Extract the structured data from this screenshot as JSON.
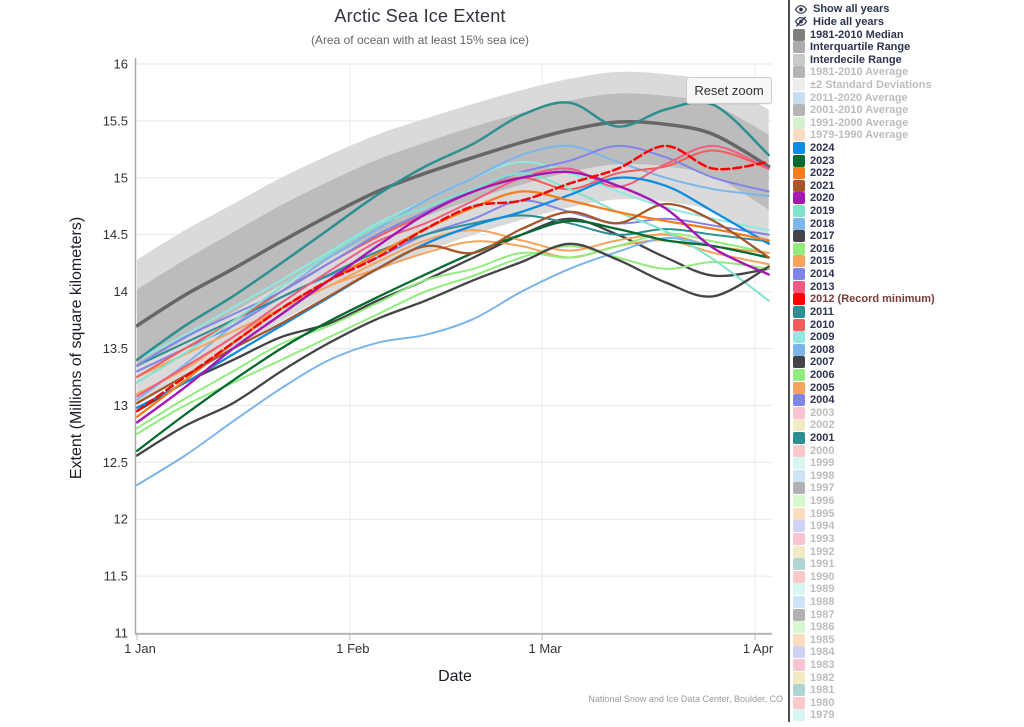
{
  "chart": {
    "title": "Arctic Sea Ice Extent",
    "subtitle": "(Area of ocean with at least 15% sea ice)",
    "y_axis_label": "Extent (Millions of square kilometers)",
    "x_axis_label": "Date",
    "reset_zoom_label": "Reset zoom",
    "attribution": "National Snow and Ice Data Center, Boulder, CO",
    "menu_icon": "hamburger"
  },
  "chart_data": {
    "type": "line",
    "title": "Arctic Sea Ice Extent",
    "subtitle": "(Area of ocean with at least 15% sea ice)",
    "xlabel": "Date",
    "ylabel": "Extent (Millions of square kilometers)",
    "ylim": [
      11,
      16
    ],
    "grid": true,
    "legend_position": "right",
    "y_ticks": [
      11,
      11.5,
      12,
      12.5,
      13,
      13.5,
      14,
      14.5,
      15,
      15.5,
      16
    ],
    "x_tick_labels": [
      "1 Jan",
      "1 Feb",
      "1 Mar",
      "1 Apr"
    ],
    "x_tick_days": [
      0,
      31,
      59,
      90
    ],
    "x_days": [
      0,
      7,
      14,
      21,
      28,
      35,
      42,
      49,
      56,
      63,
      70,
      77,
      84,
      92
    ],
    "bands": [
      {
        "name": "Interdecile Range",
        "color": "#dadada",
        "upper": [
          14.28,
          14.54,
          14.77,
          15.0,
          15.2,
          15.38,
          15.52,
          15.65,
          15.77,
          15.87,
          15.93,
          15.91,
          15.84,
          15.6
        ],
        "lower": [
          13.0,
          13.26,
          13.5,
          13.74,
          13.97,
          14.18,
          14.35,
          14.5,
          14.63,
          14.74,
          14.81,
          14.79,
          14.7,
          14.42
        ]
      },
      {
        "name": "Interquartile Range",
        "color": "#bcbcbc",
        "upper": [
          14.02,
          14.28,
          14.52,
          14.76,
          14.97,
          15.16,
          15.31,
          15.45,
          15.57,
          15.68,
          15.74,
          15.72,
          15.64,
          15.38
        ],
        "lower": [
          13.33,
          13.58,
          13.82,
          14.06,
          14.29,
          14.5,
          14.66,
          14.81,
          14.94,
          15.05,
          15.12,
          15.1,
          15.01,
          14.72
        ]
      }
    ],
    "median": {
      "name": "1981-2010 Median",
      "color": "#666666",
      "width": 3.5,
      "values": [
        13.7,
        13.97,
        14.2,
        14.44,
        14.67,
        14.88,
        15.04,
        15.18,
        15.31,
        15.42,
        15.49,
        15.47,
        15.38,
        15.1
      ]
    },
    "series": [
      {
        "name": "2009",
        "color": "#91e8e1",
        "width": 2,
        "dash": false,
        "values": [
          13.4,
          13.62,
          13.86,
          14.1,
          14.35,
          14.6,
          14.8,
          15.0,
          15.14,
          15.04,
          14.88,
          14.74,
          14.64,
          14.54
        ]
      },
      {
        "name": "2008",
        "color": "#7cb5ec",
        "width": 2,
        "dash": false,
        "values": [
          13.05,
          13.36,
          13.7,
          14.0,
          14.3,
          14.55,
          14.8,
          15.0,
          15.2,
          15.28,
          15.14,
          15.0,
          14.9,
          14.84
        ]
      },
      {
        "name": "2007",
        "color": "#434348",
        "width": 2.3,
        "dash": false,
        "values": [
          12.95,
          13.2,
          13.4,
          13.6,
          13.72,
          13.92,
          14.1,
          14.3,
          14.5,
          14.64,
          14.5,
          14.3,
          14.14,
          14.2
        ]
      },
      {
        "name": "2006",
        "color": "#90ed7d",
        "width": 2,
        "dash": false,
        "values": [
          12.75,
          13.0,
          13.2,
          13.4,
          13.6,
          13.8,
          14.0,
          14.14,
          14.3,
          14.4,
          14.3,
          14.2,
          14.26,
          14.2
        ]
      },
      {
        "name": "2005",
        "color": "#f7a35c",
        "width": 2,
        "dash": false,
        "values": [
          13.25,
          13.45,
          13.65,
          13.85,
          14.05,
          14.2,
          14.34,
          14.44,
          14.4,
          14.3,
          14.4,
          14.45,
          14.34,
          14.24
        ]
      },
      {
        "name": "2004",
        "color": "#8085e9",
        "width": 2,
        "dash": false,
        "values": [
          13.3,
          13.5,
          13.7,
          13.95,
          14.14,
          14.3,
          14.5,
          14.64,
          14.8,
          14.7,
          14.6,
          14.64,
          14.58,
          14.5
        ]
      },
      {
        "name": "2011",
        "color": "#2b908f",
        "width": 2,
        "dash": false,
        "values": [
          13.35,
          13.55,
          13.75,
          13.95,
          14.15,
          14.35,
          14.5,
          14.6,
          14.67,
          14.6,
          14.5,
          14.55,
          14.5,
          14.44
        ]
      },
      {
        "name": "2010",
        "color": "#f45b5b",
        "width": 2,
        "dash": false,
        "values": [
          13.25,
          13.5,
          13.74,
          14.0,
          14.25,
          14.48,
          14.68,
          14.88,
          15.0,
          14.9,
          15.04,
          15.1,
          15.24,
          15.08
        ]
      },
      {
        "name": "2016",
        "color": "#90ed7d",
        "width": 2,
        "dash": false,
        "values": [
          12.8,
          13.06,
          13.3,
          13.54,
          13.7,
          13.9,
          14.1,
          14.2,
          14.34,
          14.3,
          14.4,
          14.51,
          14.44,
          14.34
        ]
      },
      {
        "name": "2015",
        "color": "#f7a35c",
        "width": 2,
        "dash": false,
        "values": [
          13.1,
          13.32,
          13.6,
          13.85,
          14.05,
          14.26,
          14.45,
          14.54,
          14.45,
          14.36,
          14.45,
          14.5,
          14.4,
          14.34
        ]
      },
      {
        "name": "2014",
        "color": "#8085e9",
        "width": 2,
        "dash": false,
        "values": [
          13.35,
          13.6,
          13.8,
          14.0,
          14.25,
          14.5,
          14.7,
          14.9,
          15.05,
          15.15,
          15.28,
          15.18,
          15.0,
          14.88
        ]
      },
      {
        "name": "2013",
        "color": "#f15c80",
        "width": 2,
        "dash": false,
        "values": [
          13.08,
          13.34,
          13.6,
          13.9,
          14.18,
          14.44,
          14.6,
          14.8,
          15.0,
          15.08,
          14.92,
          15.12,
          15.28,
          15.08
        ]
      },
      {
        "name": "2019",
        "color": "#7fe3cd",
        "width": 2,
        "dash": false,
        "values": [
          13.2,
          13.46,
          13.74,
          14.04,
          14.33,
          14.58,
          14.74,
          14.9,
          15.04,
          14.9,
          14.7,
          14.53,
          14.28,
          13.92
        ]
      },
      {
        "name": "2018",
        "color": "#7cb5ec",
        "width": 2,
        "dash": false,
        "values": [
          12.3,
          12.56,
          12.86,
          13.15,
          13.4,
          13.55,
          13.62,
          13.76,
          14.0,
          14.2,
          14.35,
          14.47,
          14.4,
          14.3
        ]
      },
      {
        "name": "2017",
        "color": "#434348",
        "width": 2.3,
        "dash": false,
        "values": [
          12.56,
          12.82,
          13.02,
          13.3,
          13.55,
          13.76,
          13.92,
          14.1,
          14.26,
          14.42,
          14.28,
          14.08,
          13.96,
          14.22
        ]
      },
      {
        "name": "2024",
        "color": "#0d8ce4",
        "width": 2.3,
        "dash": false,
        "values": [
          12.98,
          13.2,
          13.45,
          13.7,
          13.95,
          14.2,
          14.42,
          14.58,
          14.7,
          14.85,
          15.0,
          14.93,
          14.7,
          14.42
        ]
      },
      {
        "name": "2023",
        "color": "#066a30",
        "width": 2.3,
        "dash": false,
        "values": [
          12.6,
          12.92,
          13.22,
          13.5,
          13.74,
          13.95,
          14.15,
          14.34,
          14.5,
          14.62,
          14.55,
          14.45,
          14.4,
          14.3
        ]
      },
      {
        "name": "2022",
        "color": "#f97d1c",
        "width": 2.3,
        "dash": false,
        "values": [
          12.9,
          13.22,
          13.55,
          13.85,
          14.1,
          14.33,
          14.55,
          14.74,
          14.88,
          14.8,
          14.7,
          14.62,
          14.55,
          14.45
        ]
      },
      {
        "name": "2021",
        "color": "#a65628",
        "width": 2.3,
        "dash": false,
        "values": [
          13.02,
          13.26,
          13.5,
          13.72,
          13.96,
          14.2,
          14.4,
          14.34,
          14.55,
          14.7,
          14.6,
          14.77,
          14.62,
          14.3
        ]
      },
      {
        "name": "2020",
        "color": "#a516b4",
        "width": 2.4,
        "dash": false,
        "values": [
          12.85,
          13.16,
          13.5,
          13.8,
          14.1,
          14.4,
          14.68,
          14.88,
          15.0,
          15.05,
          14.93,
          14.73,
          14.38,
          14.15
        ]
      },
      {
        "name": "2001",
        "color": "#2b908f",
        "width": 2.5,
        "dash": false,
        "values": [
          13.4,
          13.7,
          13.96,
          14.25,
          14.55,
          14.85,
          15.1,
          15.3,
          15.55,
          15.66,
          15.45,
          15.6,
          15.64,
          15.2
        ]
      },
      {
        "name": "2012",
        "color": "#ff0000",
        "width": 2.5,
        "dash": true,
        "values": [
          12.95,
          13.25,
          13.55,
          13.85,
          14.1,
          14.3,
          14.55,
          14.75,
          14.8,
          14.95,
          15.08,
          15.28,
          15.08,
          15.14
        ]
      }
    ]
  },
  "legend": {
    "controls": [
      {
        "id": "show-all-years",
        "label": "Show all years",
        "icon": "eye-icon"
      },
      {
        "id": "hide-all-years",
        "label": "Hide all years",
        "icon": "eye-slash-icon"
      }
    ],
    "items": [
      {
        "label": "1981-2010 Median",
        "swatch": "#7f7f7f",
        "active": true
      },
      {
        "label": "Interquartile Range",
        "swatch": "#ababab",
        "active": true
      },
      {
        "label": "Interdecile Range",
        "swatch": "#c9c9c9",
        "active": true
      },
      {
        "label": "1981-2010 Average",
        "swatch": "#b5b5b5",
        "active": false
      },
      {
        "label": "±2 Standard Deviations",
        "swatch": "#ededed",
        "active": false
      },
      {
        "label": "2011-2020 Average",
        "swatch": "#c9ddf2",
        "active": false
      },
      {
        "label": "2001-2010 Average",
        "swatch": "#b5b5b5",
        "active": false
      },
      {
        "label": "1991-2000 Average",
        "swatch": "#d5efcf",
        "active": false
      },
      {
        "label": "1979-1990 Average",
        "swatch": "#fbdcc3",
        "active": false
      },
      {
        "label": "2024",
        "swatch": "#0d8ce4",
        "active": true
      },
      {
        "label": "2023",
        "swatch": "#066a30",
        "active": true
      },
      {
        "label": "2022",
        "swatch": "#f97d1c",
        "active": true
      },
      {
        "label": "2021",
        "swatch": "#a65628",
        "active": true
      },
      {
        "label": "2020",
        "swatch": "#a516b4",
        "active": true
      },
      {
        "label": "2019",
        "swatch": "#7fe3cd",
        "active": true
      },
      {
        "label": "2018",
        "swatch": "#7cb5ec",
        "active": true
      },
      {
        "label": "2017",
        "swatch": "#434348",
        "active": true
      },
      {
        "label": "2016",
        "swatch": "#90ed7d",
        "active": true
      },
      {
        "label": "2015",
        "swatch": "#f7a35c",
        "active": true
      },
      {
        "label": "2014",
        "swatch": "#8085e9",
        "active": true
      },
      {
        "label": "2013",
        "swatch": "#f15c80",
        "active": true
      },
      {
        "label": "2012 (Record minimum)",
        "swatch": "#ff0000",
        "active": true,
        "label_color": "#7a3b3b"
      },
      {
        "label": "2011",
        "swatch": "#2b908f",
        "active": true
      },
      {
        "label": "2010",
        "swatch": "#f45b5b",
        "active": true
      },
      {
        "label": "2009",
        "swatch": "#91e8e1",
        "active": true
      },
      {
        "label": "2008",
        "swatch": "#7cb5ec",
        "active": true
      },
      {
        "label": "2007",
        "swatch": "#434348",
        "active": true
      },
      {
        "label": "2006",
        "swatch": "#90ed7d",
        "active": true
      },
      {
        "label": "2005",
        "swatch": "#f7a35c",
        "active": true
      },
      {
        "label": "2004",
        "swatch": "#8085e9",
        "active": true
      },
      {
        "label": "2003",
        "swatch": "#f9c4d2",
        "active": false
      },
      {
        "label": "2002",
        "swatch": "#f2eac2",
        "active": false
      },
      {
        "label": "2001",
        "swatch": "#2b908f",
        "active": true
      },
      {
        "label": "2000",
        "swatch": "#fbc9c9",
        "active": false
      },
      {
        "label": "1999",
        "swatch": "#d6f6f2",
        "active": false
      },
      {
        "label": "1998",
        "swatch": "#cfe3f7",
        "active": false
      },
      {
        "label": "1997",
        "swatch": "#b2b2b4",
        "active": false
      },
      {
        "label": "1996",
        "swatch": "#d5f8cf",
        "active": false
      },
      {
        "label": "1995",
        "swatch": "#fcdbbf",
        "active": false
      },
      {
        "label": "1994",
        "swatch": "#cfd2f6",
        "active": false
      },
      {
        "label": "1993",
        "swatch": "#f9c4d2",
        "active": false
      },
      {
        "label": "1992",
        "swatch": "#f2eac2",
        "active": false
      },
      {
        "label": "1991",
        "swatch": "#aed4d3",
        "active": false
      },
      {
        "label": "1990",
        "swatch": "#fbc9c9",
        "active": false
      },
      {
        "label": "1989",
        "swatch": "#d6f6f2",
        "active": false
      },
      {
        "label": "1988",
        "swatch": "#cfe3f7",
        "active": false
      },
      {
        "label": "1987",
        "swatch": "#b2b2b4",
        "active": false
      },
      {
        "label": "1986",
        "swatch": "#d5f8cf",
        "active": false
      },
      {
        "label": "1985",
        "swatch": "#fcdbbf",
        "active": false
      },
      {
        "label": "1984",
        "swatch": "#cfd2f6",
        "active": false
      },
      {
        "label": "1983",
        "swatch": "#f9c4d2",
        "active": false
      },
      {
        "label": "1982",
        "swatch": "#f2eac2",
        "active": false
      },
      {
        "label": "1981",
        "swatch": "#aed4d3",
        "active": false
      },
      {
        "label": "1980",
        "swatch": "#fbc9c9",
        "active": false
      },
      {
        "label": "1979",
        "swatch": "#d6f6f2",
        "active": false
      }
    ]
  }
}
